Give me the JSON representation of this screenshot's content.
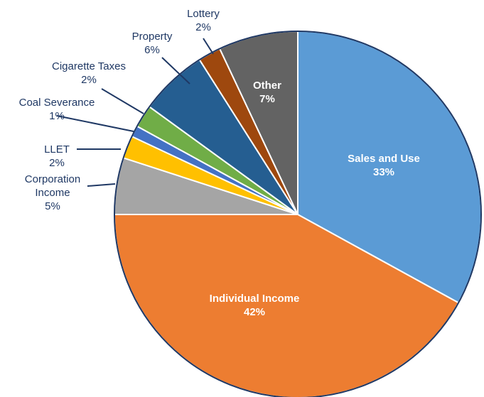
{
  "chart_data": {
    "type": "pie",
    "title": "",
    "slices": [
      {
        "name": "Sales and Use",
        "value": 33,
        "label": "33%",
        "color": "#5b9bd5"
      },
      {
        "name": "Individual Income",
        "value": 42,
        "label": "42%",
        "color": "#ed7d31"
      },
      {
        "name": "Corporation Income",
        "value": 5,
        "label": "5%",
        "color": "#a5a5a5"
      },
      {
        "name": "LLET",
        "value": 2,
        "label": "2%",
        "color": "#ffc000"
      },
      {
        "name": "Coal Severance",
        "value": 1,
        "label": "1%",
        "color": "#4472c4"
      },
      {
        "name": "Cigarette Taxes",
        "value": 2,
        "label": "2%",
        "color": "#70ad47"
      },
      {
        "name": "Property",
        "value": 6,
        "label": "6%",
        "color": "#255e91"
      },
      {
        "name": "Lottery",
        "value": 2,
        "label": "2%",
        "color": "#9e480e"
      },
      {
        "name": "Other",
        "value": 7,
        "label": "7%",
        "color": "#636363"
      }
    ]
  }
}
